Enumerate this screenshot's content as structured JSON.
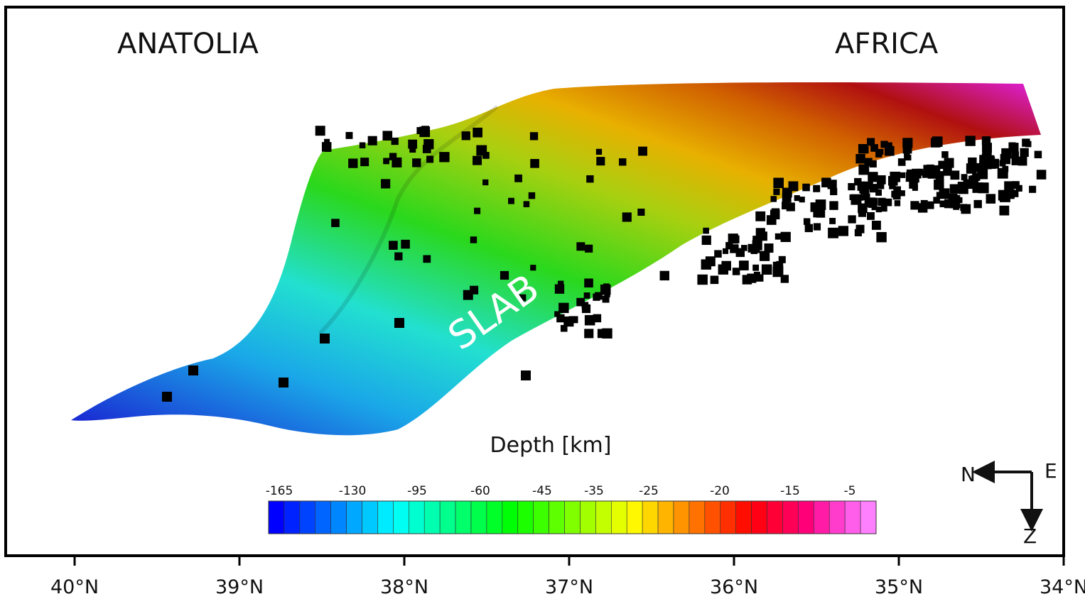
{
  "labels": {
    "left": "ANATOLIA",
    "right": "AFRICA",
    "slab": "SLAB"
  },
  "colorbar": {
    "title": "Depth [km]",
    "ticks": [
      "-165",
      "-130",
      "-95",
      "-60",
      "-45",
      "-35",
      "-25",
      "-20",
      "-15",
      "-5"
    ]
  },
  "x_axis": {
    "ticks": [
      "40°N",
      "39°N",
      "38°N",
      "37°N",
      "36°N",
      "35°N",
      "34°N"
    ]
  },
  "compass": {
    "north": "N",
    "east": "E",
    "down": "Z"
  }
}
